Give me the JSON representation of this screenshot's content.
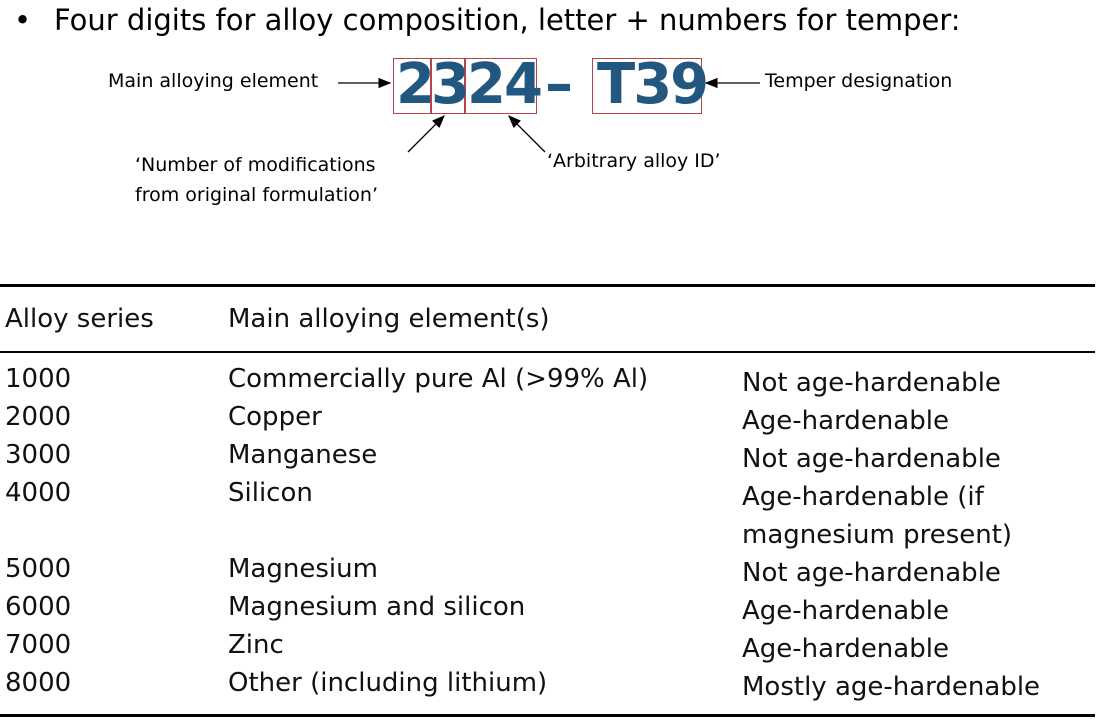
{
  "bullet": {
    "symbol": "•",
    "text": "Four digits for alloy composition, letter + numbers for temper:"
  },
  "diagram": {
    "code_digits": [
      "2",
      "3",
      "24"
    ],
    "dash": "–",
    "temper": "T39",
    "labels": {
      "main_element": "Main alloying element",
      "temper": "Temper designation",
      "modifications_line1": "‘Number of modifications",
      "modifications_line2": "from original formulation’",
      "arbitrary": "‘Arbitrary alloy ID’"
    },
    "colors": {
      "code": "#22577f",
      "box": "#b5444a"
    }
  },
  "table": {
    "headers": [
      "Alloy series",
      "Main alloying element(s)"
    ],
    "rows": [
      {
        "series": "1000",
        "element": "Commercially pure Al (>99% Al)",
        "note": [
          "Not age-hardenable"
        ]
      },
      {
        "series": "2000",
        "element": "Copper",
        "note": [
          "Age-hardenable"
        ]
      },
      {
        "series": "3000",
        "element": "Manganese",
        "note": [
          "Not age-hardenable"
        ]
      },
      {
        "series": "4000",
        "element": "Silicon",
        "note": [
          "Age-hardenable (if",
          "magnesium present)"
        ]
      },
      {
        "series": "5000",
        "element": "Magnesium",
        "note": [
          "Not age-hardenable"
        ]
      },
      {
        "series": "6000",
        "element": "Magnesium and silicon",
        "note": [
          "Age-hardenable"
        ]
      },
      {
        "series": "7000",
        "element": "Zinc",
        "note": [
          "Age-hardenable"
        ]
      },
      {
        "series": "8000",
        "element": "Other (including lithium)",
        "note": [
          "Mostly age-hardenable"
        ]
      }
    ]
  }
}
